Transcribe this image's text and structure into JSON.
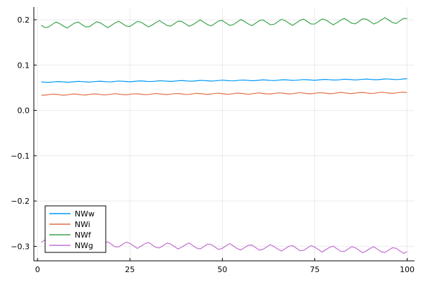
{
  "chart_data": {
    "type": "line",
    "title": "",
    "xlabel": "",
    "ylabel": "",
    "xlim": [
      -1,
      102
    ],
    "ylim": [
      -0.332,
      0.228
    ],
    "xticks": [
      0,
      25,
      50,
      75,
      100
    ],
    "yticks": [
      -0.3,
      -0.2,
      -0.1,
      0.0,
      0.1,
      0.2
    ],
    "xtick_labels": [
      "0",
      "25",
      "50",
      "75",
      "100"
    ],
    "ytick_labels": [
      "−0.3",
      "−0.2",
      "−0.1",
      "0.0",
      "0.1",
      "0.2"
    ],
    "grid": true,
    "legend_position": "bottom-left",
    "series": [
      {
        "name": "NWw",
        "color": "#009af9",
        "start": 0.0625,
        "end": 0.069,
        "amplitude": 0.001,
        "period": 5.55,
        "phase": 0.0
      },
      {
        "name": "NWi",
        "color": "#e26f46",
        "start": 0.0345,
        "end": 0.039,
        "amplitude": 0.0015,
        "period": 5.55,
        "phase": 1.2
      },
      {
        "name": "NWf",
        "color": "#3da44d",
        "start": 0.188,
        "end": 0.198,
        "amplitude": 0.0075,
        "period": 5.55,
        "phase": 0.4
      },
      {
        "name": "NWg",
        "color": "#c271d2",
        "start": -0.293,
        "end": -0.309,
        "amplitude": 0.0075,
        "period": 5.55,
        "phase": 3.5
      }
    ]
  }
}
